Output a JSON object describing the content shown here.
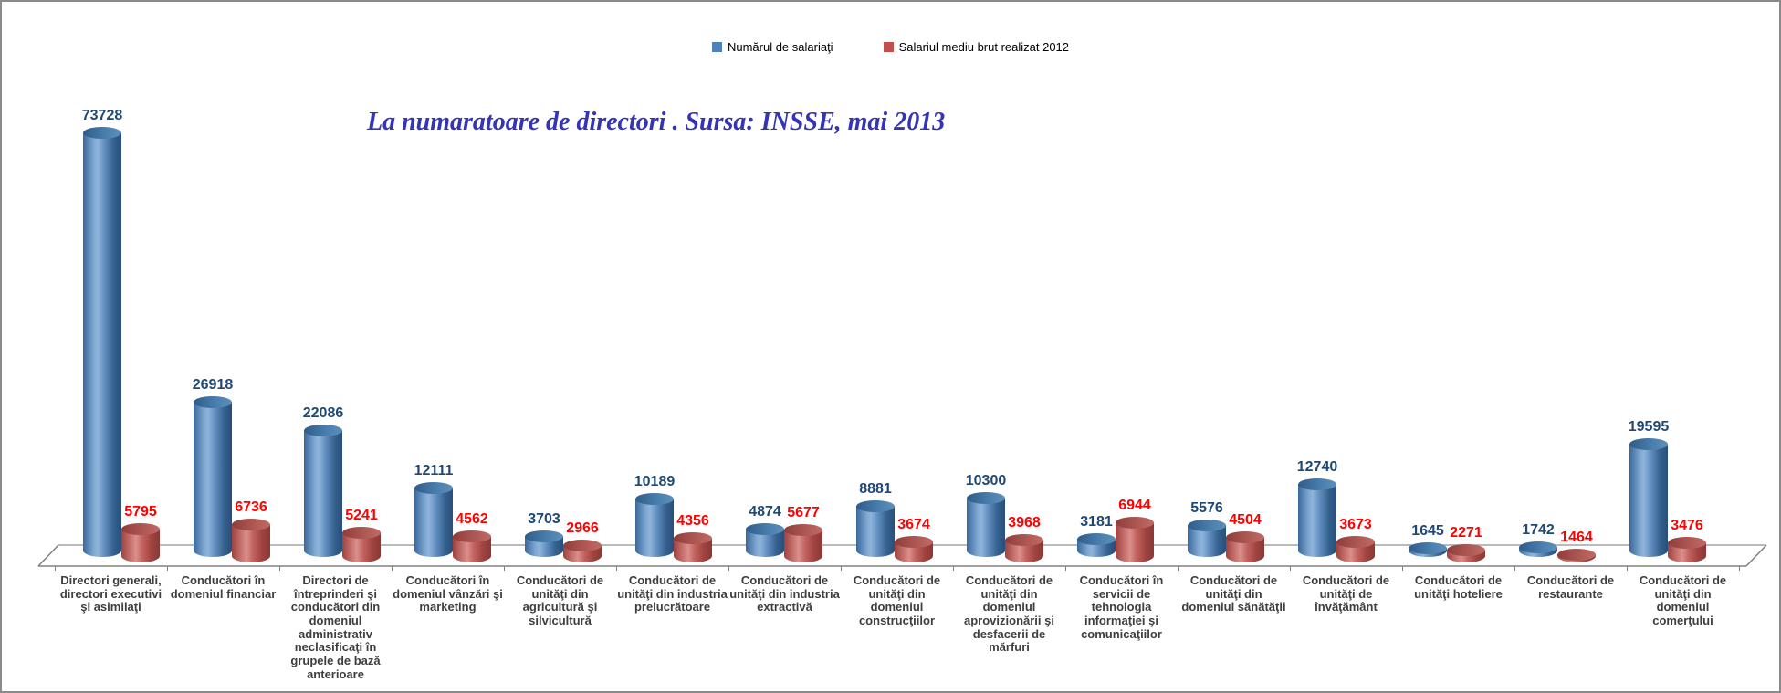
{
  "title": "La numaratoare de directori . Sursa: INSSE, mai 2013",
  "legend": [
    {
      "label": "Numărul de salariaţi",
      "color": "#4f81bd"
    },
    {
      "label": "Salariul mediu brut realizat 2012",
      "color": "#c0504d"
    }
  ],
  "chart_data": {
    "type": "bar",
    "subtype": "3d-cylinder-clustered",
    "title": "La numaratoare de directori . Sursa: INSSE, mai 2013",
    "title_color": "#3434b4",
    "grid": false,
    "legend_position": "top-center",
    "ylim": [
      0,
      73728
    ],
    "categories": [
      "Directori generali, directori executivi şi asimilaţi",
      "Conducători în domeniul financiar",
      "Directori de întreprinderi şi conducători din domeniul administrativ neclasificaţi în grupele de bază anterioare",
      "Conducători în domeniul vânzări şi marketing",
      "Conducători de unităţi din agricultură şi silvicultură",
      "Conducători de unităţi din industria prelucrătoare",
      "Conducători de unităţi din industria extractivă",
      "Conducători de unităţi din domeniul construcţiilor",
      "Conducători de unităţi din domeniul aprovizionării şi desfacerii de mărfuri",
      "Conducători în servicii de tehnologia informaţiei şi comunicaţiilor",
      "Conducători de unităţi din domeniul sănătăţii",
      "Conducători de unităţi de învăţământ",
      "Conducători de unităţi hoteliere",
      "Conducători de restaurante",
      "Conducători de unităţi din domeniul comerţului"
    ],
    "series": [
      {
        "name": "Numărul de salariaţi",
        "color": "#4f81bd",
        "label_color": "#1f4875",
        "values": [
          73728,
          26918,
          22086,
          12111,
          3703,
          10189,
          4874,
          8881,
          10300,
          3181,
          5576,
          12740,
          1645,
          1742,
          19595
        ]
      },
      {
        "name": "Salariul mediu brut realizat 2012",
        "color": "#c0504d",
        "label_color": "#ff0000",
        "values": [
          5795,
          6736,
          5241,
          4562,
          2966,
          4356,
          5677,
          3674,
          3968,
          6944,
          4504,
          3673,
          2271,
          1464,
          3476
        ]
      }
    ]
  }
}
